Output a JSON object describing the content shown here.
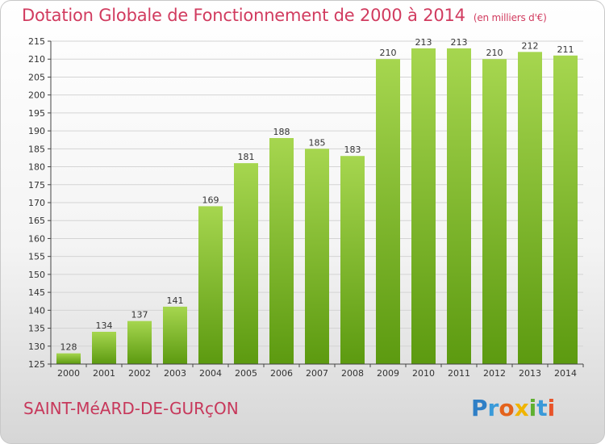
{
  "chart_data": {
    "type": "bar",
    "title": "Dotation Globale de Fonctionnement de 2000 à 2014",
    "subtitle": "(en milliers d'€)",
    "categories": [
      "2000",
      "2001",
      "2002",
      "2003",
      "2004",
      "2005",
      "2006",
      "2007",
      "2008",
      "2009",
      "2010",
      "2011",
      "2012",
      "2013",
      "2014"
    ],
    "values": [
      128,
      134,
      137,
      141,
      169,
      181,
      188,
      185,
      183,
      210,
      213,
      213,
      210,
      212,
      211
    ],
    "xlabel": "",
    "ylabel": "",
    "ylim": [
      125,
      215
    ],
    "yticks": [
      125,
      130,
      135,
      140,
      145,
      150,
      155,
      160,
      165,
      170,
      175,
      180,
      185,
      190,
      195,
      200,
      205,
      210,
      215
    ],
    "grid": true,
    "legend": "none",
    "colors": {
      "bar_top": "#a6d64f",
      "bar_bottom": "#5c9a10",
      "title": "#d13b5f",
      "grid": "#d4d4d4",
      "axis": "#444444"
    }
  },
  "commune": "SAINT-MéARD-DE-GURçON",
  "logo": {
    "letters": [
      {
        "char": "P",
        "color": "#2f7fc6"
      },
      {
        "char": "r",
        "color": "#3a9ad9"
      },
      {
        "char": "o",
        "color": "#e4631c"
      },
      {
        "char": "x",
        "color": "#f0b400"
      },
      {
        "char": "i",
        "color": "#5fb030"
      },
      {
        "char": "t",
        "color": "#3a9ad9"
      },
      {
        "char": "i",
        "color": "#e8542a"
      }
    ]
  }
}
